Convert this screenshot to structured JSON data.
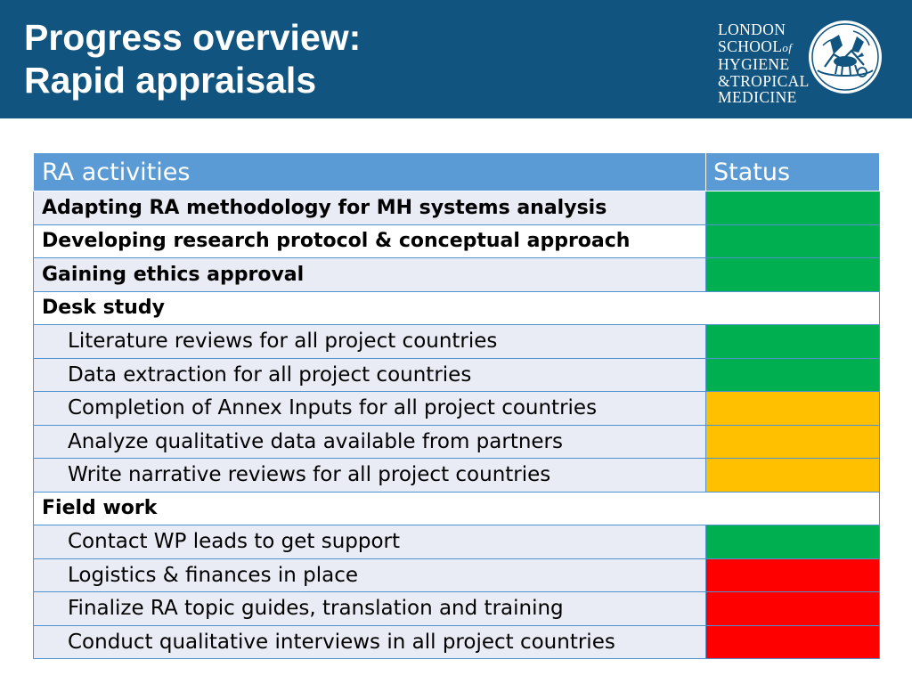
{
  "header": {
    "title_line1": "Progress overview:",
    "title_line2": "Rapid appraisals",
    "logo": {
      "line1": "LONDON",
      "line2a": "SCHOOL",
      "line2b": "of",
      "line3": "HYGIENE",
      "line4": "&TROPICAL",
      "line5": "MEDICINE"
    }
  },
  "table": {
    "col_activity": "RA activities",
    "col_status": "Status",
    "rows": [
      {
        "label": "Adapting RA methodology for MH systems analysis",
        "status": "green"
      },
      {
        "label": "Developing research protocol & conceptual approach",
        "status": "green"
      },
      {
        "label": "Gaining ethics approval",
        "status": "green"
      },
      {
        "label": "Desk study"
      },
      {
        "label": "Literature reviews for all project countries",
        "status": "green"
      },
      {
        "label": "Data extraction for all project countries",
        "status": "green"
      },
      {
        "label": "Completion of Annex Inputs for all project countries",
        "status": "amber"
      },
      {
        "label": "Analyze qualitative data available from partners",
        "status": "amber"
      },
      {
        "label": "Write narrative reviews for all project countries",
        "status": "amber"
      },
      {
        "label": "Field work"
      },
      {
        "label": "Contact WP leads to get support",
        "status": "green"
      },
      {
        "label": "Logistics & finances in place",
        "status": "red"
      },
      {
        "label": "Finalize RA topic guides, translation and training",
        "status": "red"
      },
      {
        "label": "Conduct qualitative interviews in all project countries",
        "status": "red"
      }
    ]
  },
  "colors": {
    "header_bg": "#10547f",
    "table_header_bg": "#5b9bd5",
    "green": "#00b050",
    "amber": "#ffc000",
    "red": "#ff0000"
  }
}
